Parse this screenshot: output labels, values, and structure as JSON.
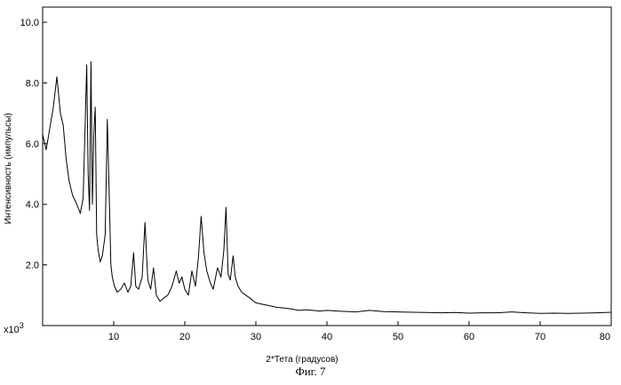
{
  "chart_data": {
    "type": "line",
    "title": "",
    "xlabel": "2*Тета (градусов)",
    "ylabel": "Интенсивность (импульсы)",
    "y_multiplier_label": "x10",
    "y_multiplier_exponent": "3",
    "xlim": [
      0,
      80
    ],
    "ylim": [
      0,
      10.5
    ],
    "xticks": [
      10,
      20,
      30,
      40,
      50,
      60,
      70,
      80
    ],
    "xtick_labels": [
      "10",
      "20",
      "30",
      "40",
      "50",
      "60",
      "70",
      "80"
    ],
    "yticks": [
      2,
      4,
      6,
      8,
      10
    ],
    "ytick_labels": [
      "2.0",
      "4.0",
      "6.0",
      "8.0",
      "10.0"
    ],
    "grid": false,
    "series": [
      {
        "x": [
          0,
          0.5,
          1,
          1.5,
          2,
          2.5,
          2.9,
          3.3,
          3.7,
          4.2,
          4.8,
          5.3,
          5.7,
          6.0,
          6.2,
          6.4,
          6.6,
          6.8,
          7.0,
          7.2,
          7.4,
          7.6,
          7.8,
          8.1,
          8.4,
          8.8,
          9.1,
          9.4,
          9.6,
          9.8,
          10.1,
          10.5,
          11.0,
          11.5,
          12.0,
          12.4,
          12.8,
          13.1,
          13.5,
          14.0,
          14.4,
          14.8,
          15.2,
          15.6,
          16.0,
          16.5,
          17.0,
          17.6,
          18.2,
          18.8,
          19.2,
          19.6,
          20.0,
          20.5,
          21.0,
          21.5,
          21.9,
          22.3,
          22.7,
          23.1,
          23.6,
          24.0,
          24.6,
          25.1,
          25.5,
          25.8,
          26.1,
          26.4,
          26.8,
          27.1,
          27.5,
          28.0,
          28.6,
          29.2,
          30.0,
          31.0,
          32.0,
          33.0,
          34.0,
          35.0,
          36.0,
          37.0,
          38.0,
          39.0,
          40.0,
          42.0,
          44.0,
          46.0,
          48.0,
          50.0,
          52.0,
          54.0,
          56.0,
          58.0,
          60.0,
          62.0,
          64.0,
          66.0,
          68.0,
          70.0,
          72.0,
          74.0,
          76.0,
          78.0,
          80.0
        ],
        "y": [
          6.3,
          5.8,
          6.5,
          7.2,
          8.2,
          7.0,
          6.6,
          5.5,
          4.8,
          4.3,
          4.0,
          3.7,
          4.2,
          6.8,
          8.6,
          5.0,
          3.8,
          8.7,
          4.0,
          6.3,
          7.2,
          3.0,
          2.5,
          2.1,
          2.3,
          3.0,
          6.8,
          4.0,
          2.0,
          1.6,
          1.3,
          1.1,
          1.2,
          1.4,
          1.1,
          1.3,
          2.4,
          1.3,
          1.2,
          1.6,
          3.4,
          1.5,
          1.2,
          1.9,
          1.0,
          0.8,
          0.9,
          1.0,
          1.3,
          1.8,
          1.4,
          1.6,
          1.2,
          1.0,
          1.8,
          1.3,
          2.2,
          3.6,
          2.4,
          1.8,
          1.4,
          1.2,
          1.9,
          1.6,
          2.5,
          3.9,
          1.7,
          1.5,
          2.3,
          1.6,
          1.3,
          1.1,
          1.0,
          0.9,
          0.75,
          0.7,
          0.65,
          0.6,
          0.58,
          0.55,
          0.5,
          0.52,
          0.5,
          0.48,
          0.5,
          0.47,
          0.45,
          0.5,
          0.46,
          0.45,
          0.44,
          0.43,
          0.42,
          0.43,
          0.41,
          0.42,
          0.42,
          0.45,
          0.42,
          0.4,
          0.41,
          0.4,
          0.41,
          0.42,
          0.44
        ]
      }
    ]
  },
  "caption": "Фиг. 7"
}
